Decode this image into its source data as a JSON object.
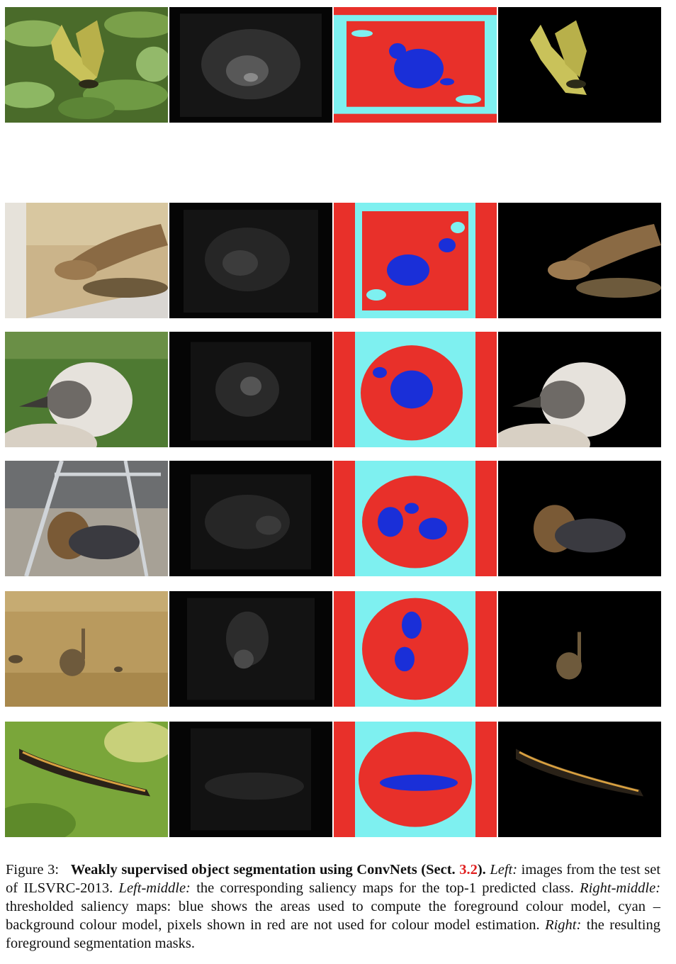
{
  "figure": {
    "rows": [
      {
        "subject": "grasshopper",
        "pieces": {
          "left": "images",
          "left_middle": "saliency-map",
          "right_middle": "thresholded-saliency-map",
          "right": "foreground-mask"
        }
      },
      {
        "subject": "snake",
        "pieces": {
          "left": "images",
          "left_middle": "saliency-map",
          "right_middle": "thresholded-saliency-map",
          "right": "foreground-mask"
        }
      },
      {
        "subject": "vulture",
        "pieces": {
          "left": "images",
          "left_middle": "saliency-map",
          "right_middle": "thresholded-saliency-map",
          "right": "foreground-mask"
        }
      },
      {
        "subject": "dog",
        "pieces": {
          "left": "images",
          "left_middle": "saliency-map",
          "right_middle": "thresholded-saliency-map",
          "right": "foreground-mask"
        }
      },
      {
        "subject": "bustard",
        "pieces": {
          "left": "images",
          "left_middle": "saliency-map",
          "right_middle": "thresholded-saliency-map",
          "right": "foreground-mask"
        }
      },
      {
        "subject": "newt",
        "pieces": {
          "left": "images",
          "left_middle": "saliency-map",
          "right_middle": "thresholded-saliency-map",
          "right": "foreground-mask"
        }
      }
    ],
    "colors": {
      "saliency_bg": "#050505",
      "threshold_red": "#e8302a",
      "threshold_cyan": "#7ef0f0",
      "threshold_blue": "#1a2fd8",
      "mask_bg": "#000000"
    }
  },
  "caption": {
    "label": "Figure 3:",
    "title": "Weakly supervised object segmentation using ConvNets (Sect.",
    "ref": "3.2",
    "title_end": ").",
    "left_label": "Left:",
    "left_text": "images from the test set of ILSVRC-2013.",
    "left_middle_label": "Left-middle:",
    "left_middle_text": "the corresponding saliency maps for the top-1 predicted class.",
    "right_middle_label": "Right-middle:",
    "right_middle_text": "thresholded saliency maps: blue shows the areas used to compute the foreground colour model, cyan – background colour model, pixels shown in red are not used for colour model estimation.",
    "right_label": "Right:",
    "right_text": "the resulting foreground segmentation masks."
  }
}
